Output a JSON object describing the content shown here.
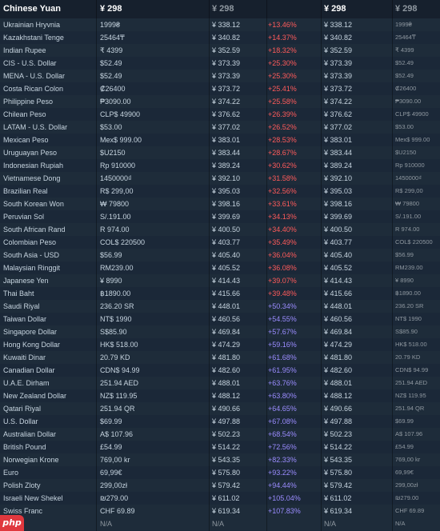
{
  "header": {
    "currency": "Chinese Yuan",
    "local_price": "¥ 298",
    "converted_price": "¥ 298",
    "converted_price_2": "¥ 298",
    "local_price_2": "¥ 298"
  },
  "rows": [
    {
      "name": "Ukrainian Hryvnia",
      "local": "1999₴",
      "cny": "¥ 338.12",
      "diff": "+13.46%",
      "dir": "up"
    },
    {
      "name": "Kazakhstani Tenge",
      "local": "25464₸",
      "cny": "¥ 340.82",
      "diff": "+14.37%",
      "dir": "up"
    },
    {
      "name": "Indian Rupee",
      "local": "₹ 4399",
      "cny": "¥ 352.59",
      "diff": "+18.32%",
      "dir": "up"
    },
    {
      "name": "CIS - U.S. Dollar",
      "local": "$52.49",
      "cny": "¥ 373.39",
      "diff": "+25.30%",
      "dir": "up"
    },
    {
      "name": "MENA - U.S. Dollar",
      "local": "$52.49",
      "cny": "¥ 373.39",
      "diff": "+25.30%",
      "dir": "up"
    },
    {
      "name": "Costa Rican Colon",
      "local": "₡26400",
      "cny": "¥ 373.72",
      "diff": "+25.41%",
      "dir": "up"
    },
    {
      "name": "Philippine Peso",
      "local": "₱3090.00",
      "cny": "¥ 374.22",
      "diff": "+25.58%",
      "dir": "up"
    },
    {
      "name": "Chilean Peso",
      "local": "CLP$ 49900",
      "cny": "¥ 376.62",
      "diff": "+26.39%",
      "dir": "up"
    },
    {
      "name": "LATAM - U.S. Dollar",
      "local": "$53.00",
      "cny": "¥ 377.02",
      "diff": "+26.52%",
      "dir": "up"
    },
    {
      "name": "Mexican Peso",
      "local": "Mex$ 999.00",
      "cny": "¥ 383.01",
      "diff": "+28.53%",
      "dir": "up"
    },
    {
      "name": "Uruguayan Peso",
      "local": "$U2150",
      "cny": "¥ 383.44",
      "diff": "+28.67%",
      "dir": "up"
    },
    {
      "name": "Indonesian Rupiah",
      "local": "Rp 910000",
      "cny": "¥ 389.24",
      "diff": "+30.62%",
      "dir": "up"
    },
    {
      "name": "Vietnamese Dong",
      "local": "1450000₫",
      "cny": "¥ 392.10",
      "diff": "+31.58%",
      "dir": "up"
    },
    {
      "name": "Brazilian Real",
      "local": "R$ 299,00",
      "cny": "¥ 395.03",
      "diff": "+32.56%",
      "dir": "up"
    },
    {
      "name": "South Korean Won",
      "local": "₩ 79800",
      "cny": "¥ 398.16",
      "diff": "+33.61%",
      "dir": "up"
    },
    {
      "name": "Peruvian Sol",
      "local": "S/.191.00",
      "cny": "¥ 399.69",
      "diff": "+34.13%",
      "dir": "up"
    },
    {
      "name": "South African Rand",
      "local": "R 974.00",
      "cny": "¥ 400.50",
      "diff": "+34.40%",
      "dir": "up"
    },
    {
      "name": "Colombian Peso",
      "local": "COL$ 220500",
      "cny": "¥ 403.77",
      "diff": "+35.49%",
      "dir": "up"
    },
    {
      "name": "South Asia - USD",
      "local": "$56.99",
      "cny": "¥ 405.40",
      "diff": "+36.04%",
      "dir": "up"
    },
    {
      "name": "Malaysian Ringgit",
      "local": "RM239.00",
      "cny": "¥ 405.52",
      "diff": "+36.08%",
      "dir": "up"
    },
    {
      "name": "Japanese Yen",
      "local": "¥ 8990",
      "cny": "¥ 414.43",
      "diff": "+39.07%",
      "dir": "up"
    },
    {
      "name": "Thai Baht",
      "local": "฿1890.00",
      "cny": "¥ 415.66",
      "diff": "+39.48%",
      "dir": "up"
    },
    {
      "name": "Saudi Riyal",
      "local": "236.20 SR",
      "cny": "¥ 448.01",
      "diff": "+50.34%",
      "dir": "down"
    },
    {
      "name": "Taiwan Dollar",
      "local": "NT$ 1990",
      "cny": "¥ 460.56",
      "diff": "+54.55%",
      "dir": "down"
    },
    {
      "name": "Singapore Dollar",
      "local": "S$85.90",
      "cny": "¥ 469.84",
      "diff": "+57.67%",
      "dir": "down"
    },
    {
      "name": "Hong Kong Dollar",
      "local": "HK$ 518.00",
      "cny": "¥ 474.29",
      "diff": "+59.16%",
      "dir": "down"
    },
    {
      "name": "Kuwaiti Dinar",
      "local": "20.79 KD",
      "cny": "¥ 481.80",
      "diff": "+61.68%",
      "dir": "down"
    },
    {
      "name": "Canadian Dollar",
      "local": "CDN$ 94.99",
      "cny": "¥ 482.60",
      "diff": "+61.95%",
      "dir": "down"
    },
    {
      "name": "U.A.E. Dirham",
      "local": "251.94 AED",
      "cny": "¥ 488.01",
      "diff": "+63.76%",
      "dir": "down"
    },
    {
      "name": "New Zealand Dollar",
      "local": "NZ$ 119.95",
      "cny": "¥ 488.12",
      "diff": "+63.80%",
      "dir": "down"
    },
    {
      "name": "Qatari Riyal",
      "local": "251.94 QR",
      "cny": "¥ 490.66",
      "diff": "+64.65%",
      "dir": "down"
    },
    {
      "name": "U.S. Dollar",
      "local": "$69.99",
      "cny": "¥ 497.88",
      "diff": "+67.08%",
      "dir": "down"
    },
    {
      "name": "Australian Dollar",
      "local": "A$ 107.96",
      "cny": "¥ 502.23",
      "diff": "+68.54%",
      "dir": "down"
    },
    {
      "name": "British Pound",
      "local": "£54.99",
      "cny": "¥ 514.22",
      "diff": "+72.56%",
      "dir": "down"
    },
    {
      "name": "Norwegian Krone",
      "local": "769,00 kr",
      "cny": "¥ 543.35",
      "diff": "+82.33%",
      "dir": "down"
    },
    {
      "name": "Euro",
      "local": "69,99€",
      "cny": "¥ 575.80",
      "diff": "+93.22%",
      "dir": "down"
    },
    {
      "name": "Polish Zloty",
      "local": "299,00zł",
      "cny": "¥ 579.42",
      "diff": "+94.44%",
      "dir": "down"
    },
    {
      "name": "Israeli New Shekel",
      "local": "₪279.00",
      "cny": "¥ 611.02",
      "diff": "+105.04%",
      "dir": "down"
    },
    {
      "name": "Swiss Franc",
      "local": "CHF 69.89",
      "cny": "¥ 619.34",
      "diff": "+107.83%",
      "dir": "down"
    }
  ],
  "na_row": {
    "name": "",
    "local": "N/A",
    "cny": "N/A",
    "cny2": "N/A",
    "local2": "N/A"
  },
  "watermark": "php",
  "colors": {
    "background": "#1b2838",
    "diff_up": "#ff5b5b",
    "diff_down": "#9b8cff",
    "watermark_bg": "#e0383e"
  }
}
